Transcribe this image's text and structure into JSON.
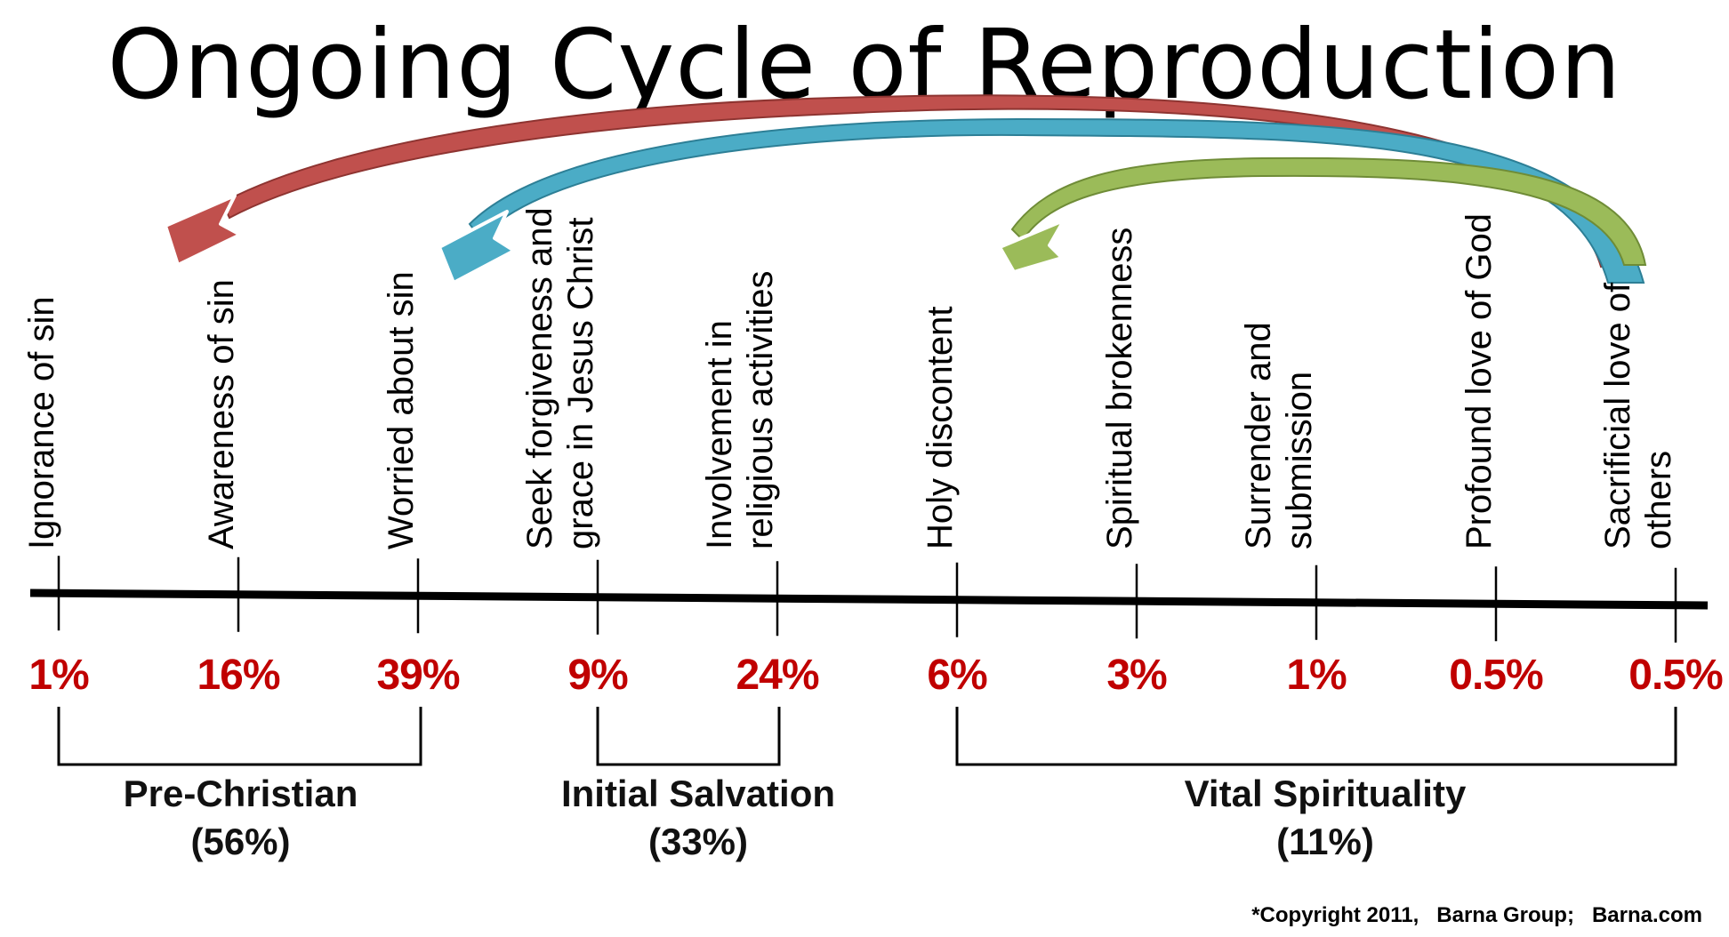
{
  "title": "Ongoing Cycle of Reproduction",
  "stages": [
    {
      "label": "Ignorance of sin",
      "percent": "1%"
    },
    {
      "label": "Awareness of sin",
      "percent": "16%"
    },
    {
      "label": "Worried about sin",
      "percent": "39%"
    },
    {
      "label": "Seek forgiveness and",
      "label2": "grace in Jesus Christ",
      "percent": "9%"
    },
    {
      "label": "Involvement  in",
      "label2": "religious  activities",
      "percent": "24%"
    },
    {
      "label": "Holy discontent",
      "percent": "6%"
    },
    {
      "label": "Spiritual  brokenness",
      "percent": "3%"
    },
    {
      "label": "Surrender  and",
      "label2": "submission",
      "percent": "1%"
    },
    {
      "label": "Profound love of God",
      "percent": "0.5%"
    },
    {
      "label": "Sacrificial love of",
      "label2": "others",
      "percent": "0.5%"
    }
  ],
  "groups": [
    {
      "name": "Pre-Christian",
      "share": "(56%)"
    },
    {
      "name": "Initial Salvation",
      "share": "(33%)"
    },
    {
      "name": "Vital Spirituality",
      "share": "(11%)"
    }
  ],
  "arrows": [
    {
      "color": "#c0504d",
      "dark": "#8e3431",
      "from": "Sacrificial love of others",
      "to": "Awareness of sin"
    },
    {
      "color": "#4bacc6",
      "dark": "#2d7f96",
      "from": "Sacrificial love of others",
      "to": "Worried about sin"
    },
    {
      "color": "#9bbb59",
      "dark": "#6f8c37",
      "from": "Sacrificial love of others",
      "to": "Holy discontent"
    }
  ],
  "copyright": "*Copyright 2011,   Barna Group;   Barna.com",
  "colors": {
    "percent": "#c00000",
    "line": "#000000"
  }
}
